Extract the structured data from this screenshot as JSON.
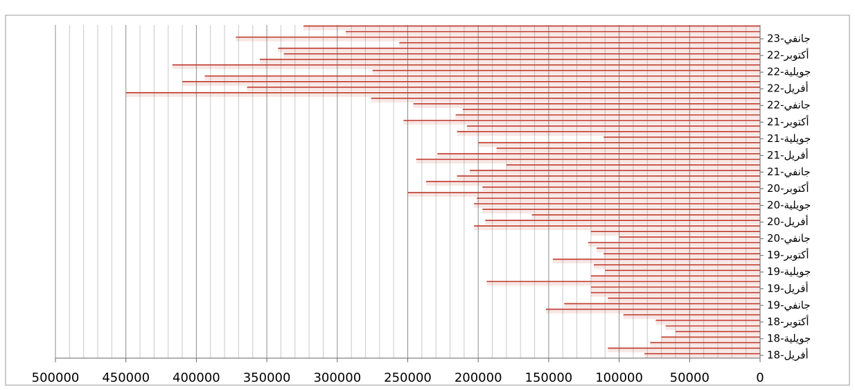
{
  "chart_data": {
    "type": "hbar",
    "categories": [
      "أفريل-18",
      null,
      null,
      "جويلية-18",
      null,
      null,
      "أكتوبر-18",
      null,
      null,
      "جانفي-19",
      null,
      null,
      "أفريل-19",
      null,
      null,
      "جويلية-19",
      null,
      null,
      "أكتوبر-19",
      null,
      null,
      "جانفي-20",
      null,
      null,
      "أفريل-20",
      null,
      null,
      "جويلية-20",
      null,
      null,
      "أكتوبر-20",
      null,
      null,
      "جانفي-21",
      null,
      null,
      "أفريل-21",
      null,
      null,
      "جويلية-21",
      null,
      null,
      "أكتوبر-21",
      null,
      null,
      "جانفي-22",
      null,
      null,
      "أفريل-22",
      null,
      null,
      "جويلية-22",
      null,
      null,
      "أكتوبر-22",
      null,
      null,
      "جانفي-23",
      null,
      null
    ],
    "values": [
      82000,
      108000,
      78000,
      70000,
      60000,
      67000,
      74000,
      97000,
      152000,
      139000,
      108000,
      120000,
      120000,
      194000,
      120000,
      110000,
      118000,
      147000,
      111000,
      116000,
      122000,
      100000,
      120000,
      203000,
      195000,
      162000,
      197000,
      203000,
      201000,
      250000,
      197000,
      237000,
      215000,
      206000,
      180000,
      244000,
      229000,
      187000,
      200000,
      111000,
      215000,
      208000,
      253000,
      216000,
      211000,
      246000,
      276000,
      450000,
      364000,
      410000,
      394000,
      275000,
      417000,
      355000,
      338000,
      342000,
      256000,
      372000,
      294000,
      324000
    ],
    "color": "#c0392b",
    "xlim": [
      0,
      500000
    ],
    "x_reversed": true,
    "xticks": [
      0,
      50000,
      100000,
      150000,
      200000,
      250000,
      300000,
      350000,
      400000,
      450000,
      500000
    ],
    "x_minor_ticks": [
      10000,
      20000,
      30000,
      40000,
      60000,
      70000,
      80000,
      90000,
      110000,
      120000,
      130000,
      140000,
      160000,
      170000,
      180000,
      190000,
      210000,
      220000,
      230000,
      240000,
      260000,
      270000,
      280000,
      290000,
      310000,
      320000,
      330000,
      340000,
      360000,
      370000,
      380000,
      390000,
      410000,
      420000,
      430000,
      440000,
      460000,
      470000,
      480000,
      490000
    ],
    "grid": true
  }
}
